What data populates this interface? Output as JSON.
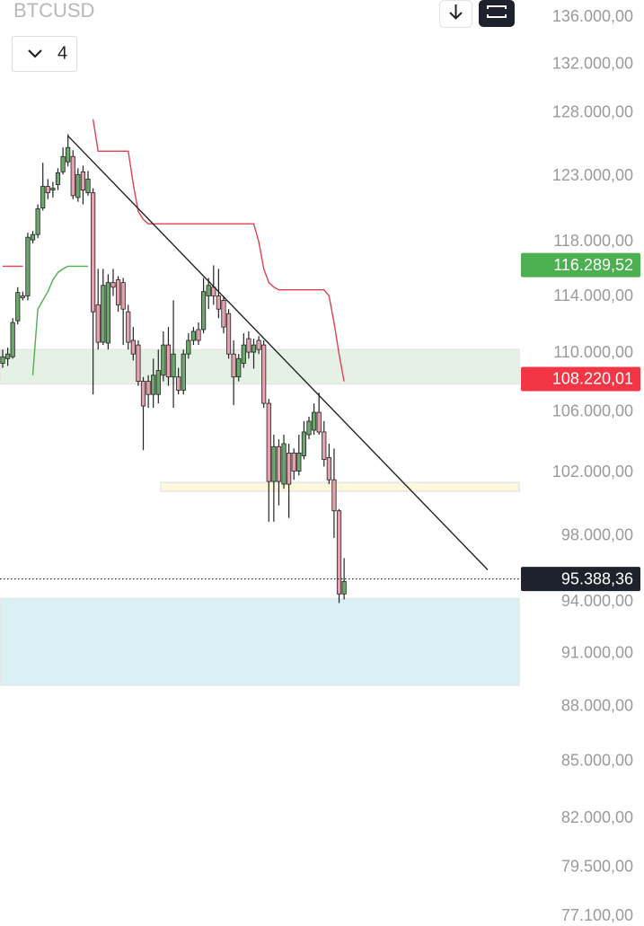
{
  "chart_data": {
    "type": "candlestick",
    "title": "BTCUSD",
    "interval": "4",
    "log": true,
    "ylim": [
      77100,
      136000
    ],
    "yticks": [
      {
        "value": 136000,
        "label": "136.000,00"
      },
      {
        "value": 132000,
        "label": "132.000,00"
      },
      {
        "value": 128000,
        "label": "128.000,00"
      },
      {
        "value": 123000,
        "label": "123.000,00"
      },
      {
        "value": 118000,
        "label": "118.000,00"
      },
      {
        "value": 114000,
        "label": "114.000,00"
      },
      {
        "value": 110000,
        "label": "110.000,00"
      },
      {
        "value": 106000,
        "label": "106.000,00"
      },
      {
        "value": 102000,
        "label": "102.000,00"
      },
      {
        "value": 98000,
        "label": "98.000,00"
      },
      {
        "value": 94000,
        "label": "94.000,00"
      },
      {
        "value": 91000,
        "label": "91.000,00"
      },
      {
        "value": 88000,
        "label": "88.000,00"
      },
      {
        "value": 85000,
        "label": "85.000,00"
      },
      {
        "value": 82000,
        "label": "82.000,00"
      },
      {
        "value": 79500,
        "label": "79.500,00"
      },
      {
        "value": 77100,
        "label": "77.100,00"
      }
    ],
    "up_color": "#6aa86b",
    "down_color": "#e3a2ad",
    "wick_color": "#222222",
    "candles": {
      "open": [
        109300,
        109620,
        109750,
        112270,
        114050,
        114050,
        118150,
        118550,
        120560,
        122210,
        121930,
        122350,
        123340,
        124120,
        124540,
        121360,
        123340,
        121720,
        121720,
        113410,
        110760,
        110700,
        115010,
        115210,
        115010,
        112910,
        110890,
        110570,
        108060,
        108060,
        107170,
        107170,
        108480,
        110570,
        108360,
        108360,
        107460,
        109940,
        110890,
        111650,
        111650,
        114050,
        114680,
        114050,
        113730,
        112780,
        109940,
        108360,
        109300,
        111010,
        110070,
        110890,
        110570,
        106570,
        101440,
        103700,
        101270,
        103280,
        103280,
        102110,
        103100,
        104480,
        104780,
        105970,
        104660,
        102990,
        101550,
        99580,
        94490
      ],
      "high": [
        110250,
        110380,
        112460,
        114680,
        114360,
        118690,
        118820,
        120830,
        124050,
        122780,
        122560,
        123620,
        125250,
        126310,
        125040,
        123620,
        123830,
        123410,
        122070,
        116010,
        116010,
        115620,
        116010,
        115480,
        115350,
        113410,
        111830,
        110890,
        108360,
        108480,
        109620,
        110250,
        111520,
        111830,
        113730,
        108990,
        110250,
        111390,
        111830,
        112150,
        115350,
        115350,
        116270,
        116010,
        114050,
        113100,
        110890,
        109940,
        111390,
        111520,
        111010,
        111200,
        110890,
        106870,
        104480,
        104180,
        104480,
        103890,
        103580,
        104480,
        105380,
        105670,
        106570,
        107290,
        105380,
        103890,
        103580,
        99690,
        96650
      ],
      "low": [
        108990,
        109120,
        109620,
        112020,
        113730,
        113730,
        117890,
        118290,
        120360,
        121230,
        121360,
        121930,
        123130,
        123760,
        121230,
        121030,
        120830,
        121500,
        107170,
        110250,
        110570,
        110250,
        114050,
        112910,
        110570,
        110250,
        109500,
        107760,
        103470,
        106270,
        106270,
        106570,
        108060,
        107760,
        106270,
        107170,
        107170,
        109620,
        110570,
        110570,
        111390,
        113100,
        113410,
        112460,
        111390,
        109620,
        106450,
        108060,
        108990,
        109620,
        108930,
        109940,
        106270,
        98900,
        98900,
        99920,
        100980,
        99130,
        101550,
        101830,
        102870,
        104180,
        104480,
        104480,
        102400,
        101270,
        97890,
        93950,
        94160
      ],
      "close": [
        109750,
        109940,
        112150,
        114300,
        113920,
        118350,
        118550,
        120490,
        122210,
        121720,
        122070,
        123270,
        124540,
        125250,
        121500,
        123130,
        121930,
        122780,
        112910,
        110760,
        114810,
        115010,
        114680,
        113410,
        113100,
        110760,
        109940,
        108060,
        106390,
        107170,
        108480,
        108800,
        110570,
        108360,
        109940,
        107460,
        109940,
        110890,
        111520,
        110890,
        114360,
        114810,
        114050,
        113100,
        111830,
        109940,
        108360,
        109620,
        110570,
        110070,
        110570,
        110250,
        106570,
        101440,
        103700,
        101440,
        103890,
        101270,
        102110,
        103280,
        104660,
        105380,
        105970,
        104660,
        102870,
        101550,
        99580,
        94490,
        95240
      ]
    },
    "lines": [
      {
        "color": "#e0414f",
        "values": [
          116210,
          116210,
          116210,
          116210,
          116210,
          null,
          null,
          null,
          null,
          null,
          null,
          null,
          null,
          null,
          null,
          null,
          null,
          null,
          127510,
          124960,
          124960,
          124960,
          124960,
          124960,
          124960,
          124960,
          122420,
          120290,
          119690,
          119360,
          119360,
          119360,
          119360,
          119360,
          119360,
          119360,
          119360,
          119360,
          119360,
          119360,
          119360,
          119360,
          119360,
          119360,
          119360,
          119360,
          119360,
          119360,
          119360,
          119360,
          119360,
          118020,
          116010,
          115010,
          114680,
          114490,
          114490,
          114490,
          114490,
          114490,
          114490,
          114490,
          114490,
          114490,
          114490,
          114050,
          112150,
          109940,
          108060
        ]
      },
      {
        "color": "#4caf50",
        "values": [
          null,
          null,
          null,
          null,
          null,
          null,
          108480,
          113100,
          113730,
          114360,
          115210,
          115750,
          116010,
          116210,
          116210,
          116210,
          116210,
          116210,
          null,
          null,
          null,
          null,
          null,
          null,
          null,
          null,
          null,
          null,
          null,
          null,
          null,
          null,
          null,
          null,
          null,
          null,
          null,
          null,
          null,
          null,
          null,
          null,
          null,
          null,
          null,
          null,
          null,
          null,
          null,
          null,
          null,
          null,
          null,
          null,
          null,
          null,
          null,
          null,
          null,
          null,
          null,
          null,
          null,
          null,
          null,
          null,
          null,
          null,
          null
        ]
      }
    ],
    "trendline": {
      "color": "#222222",
      "x": [
        13,
        96.6
      ],
      "y": [
        126170,
        95940
      ]
    },
    "zones": [
      {
        "from": 0,
        "range": [
          107880,
          110250
        ],
        "color": "#e6f1e6"
      },
      {
        "from": 32,
        "range": [
          100820,
          101380
        ],
        "color": "#fbf8dc"
      },
      {
        "from": 0,
        "range": [
          89200,
          94210
        ],
        "color": "#d9f1f4"
      }
    ],
    "price_labels": [
      {
        "value": 116289.52,
        "label": "116.289,52",
        "color": "#4caf50",
        "dotted_line": false
      },
      {
        "value": 108220.01,
        "label": "108.220,01",
        "color": "#f23645",
        "dotted_line": false
      },
      {
        "value": 95388.36,
        "label": "95.388,36",
        "color": "#1e222d",
        "dotted_line": true
      }
    ]
  }
}
